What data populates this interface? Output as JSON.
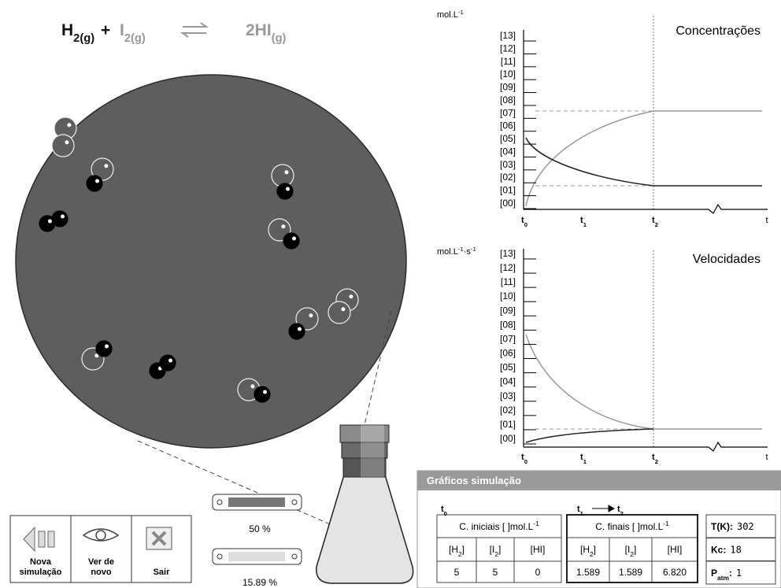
{
  "equation": {
    "h": "H",
    "h_sub": "2(g)",
    "plus": "+",
    "i": "I",
    "i_sub": "2(g)",
    "hi": "2HI",
    "hi_sub": "(g)"
  },
  "graphs": [
    {
      "unit": [
        [
          "mol.L",
          ""
        ],
        [
          "-1",
          "sup"
        ]
      ],
      "title": "Concentrações",
      "yticks": [
        "[00]",
        "[01]",
        "[02]",
        "[03]",
        "[04]",
        "[05]",
        "[06]",
        "[07]",
        "[08]",
        "[09]",
        "[10]",
        "[11]",
        "[12]",
        "[13]"
      ],
      "xticks": [
        {
          "t": "t",
          "sub": "0"
        },
        {
          "t": "t",
          "sub": "1"
        },
        {
          "t": "t",
          "sub": "2"
        },
        {
          "t": "t"
        }
      ]
    },
    {
      "unit": [
        [
          "mol.L",
          ""
        ],
        [
          "-1",
          "sup"
        ],
        [
          "·s",
          ""
        ],
        [
          "-1",
          "sup"
        ]
      ],
      "title": "Velocidades",
      "yticks": [
        "[00]",
        "[01]",
        "[02]",
        "[03]",
        "[04]",
        "[05]",
        "[06]",
        "[07]",
        "[08]",
        "[09]",
        "[10]",
        "[11]",
        "[12]",
        "[13]"
      ],
      "xticks": [
        {
          "t": "t",
          "sub": "0"
        },
        {
          "t": "t",
          "sub": "1"
        },
        {
          "t": "t",
          "sub": "2"
        },
        {
          "t": "t"
        }
      ]
    }
  ],
  "sliders": [
    {
      "label": "50 %"
    },
    {
      "label": "15.89 %"
    }
  ],
  "buttons": [
    {
      "lines": [
        "Nova",
        "simulação"
      ]
    },
    {
      "lines": [
        "Ver de",
        "novo"
      ]
    },
    {
      "lines": [
        "Sair"
      ]
    }
  ],
  "panel": {
    "title": "Gráficos simulação",
    "t_start": {
      "t": "t",
      "sub": "0"
    },
    "t_from": {
      "t": "t",
      "sub": "1"
    },
    "t_to": {
      "t": "t",
      "sub": "2"
    },
    "initial": {
      "header": [
        [
          "C. iniciais [ ]mol.L",
          ""
        ],
        [
          "-1",
          "sup"
        ]
      ],
      "columns": [
        [
          [
            "[H",
            ""
          ],
          [
            "2",
            "sub"
          ],
          [
            "]",
            ""
          ]
        ],
        [
          [
            "[I",
            ""
          ],
          [
            "2",
            "sub"
          ],
          [
            "]",
            ""
          ]
        ],
        [
          [
            "[HI]",
            ""
          ]
        ]
      ],
      "values": [
        5,
        5,
        0
      ]
    },
    "final": {
      "header": [
        [
          "C. finais [ ]mol.L",
          ""
        ],
        [
          "-1",
          "sup"
        ]
      ],
      "columns": [
        [
          [
            "[H",
            ""
          ],
          [
            "2",
            "sub"
          ],
          [
            "]",
            ""
          ]
        ],
        [
          [
            "[I",
            ""
          ],
          [
            "2",
            "sub"
          ],
          [
            "]",
            ""
          ]
        ],
        [
          [
            "[HI]",
            ""
          ]
        ]
      ],
      "values": [
        1.589,
        1.589,
        "6.820"
      ]
    },
    "conditions": [
      {
        "label": [
          [
            "T(K):",
            ""
          ]
        ],
        "value": 302
      },
      {
        "label": [
          [
            "Kc:",
            ""
          ]
        ],
        "value": 18
      },
      {
        "label": [
          [
            "P",
            ""
          ],
          [
            "atm",
            "sub"
          ],
          [
            ":",
            ""
          ]
        ],
        "value": 1
      }
    ]
  }
}
